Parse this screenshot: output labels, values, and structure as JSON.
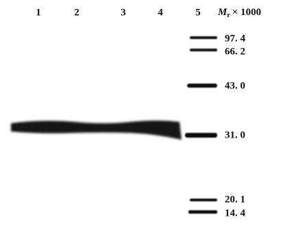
{
  "lanes": [
    "1",
    "2",
    "3",
    "4",
    "5"
  ],
  "mw_header": {
    "symbol": "M",
    "subscript": "r",
    "text": "× 1000"
  },
  "markers": [
    "97. 4",
    "66. 2",
    "43. 0",
    "31. 0",
    "20. 1",
    "14. 4"
  ]
}
